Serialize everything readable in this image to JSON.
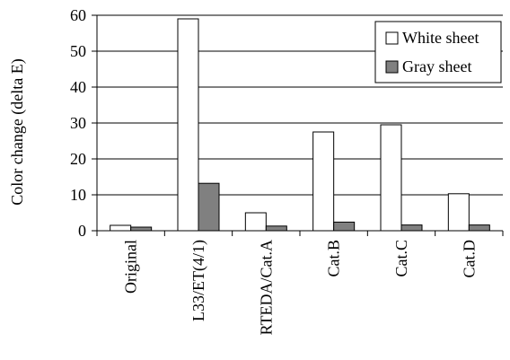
{
  "chart_data": {
    "type": "bar",
    "categories": [
      "Original",
      "L33/ET(4/1)",
      "RTEDA/Cat.A",
      "Cat.B",
      "Cat.C",
      "Cat.D"
    ],
    "series": [
      {
        "name": "White sheet",
        "values": [
          1.5,
          59,
          5,
          27.5,
          29.5,
          10.3
        ],
        "color": "#ffffff"
      },
      {
        "name": "Gray sheet",
        "values": [
          1,
          13.2,
          1.3,
          2.4,
          1.6,
          1.6
        ],
        "color": "#808080"
      }
    ],
    "ylabel": "Color change (delta E)",
    "xlabel": "",
    "ylim": [
      0,
      60
    ],
    "yticks": [
      0,
      10,
      20,
      30,
      40,
      50,
      60
    ],
    "grid": true,
    "legend_position": "top-right"
  }
}
